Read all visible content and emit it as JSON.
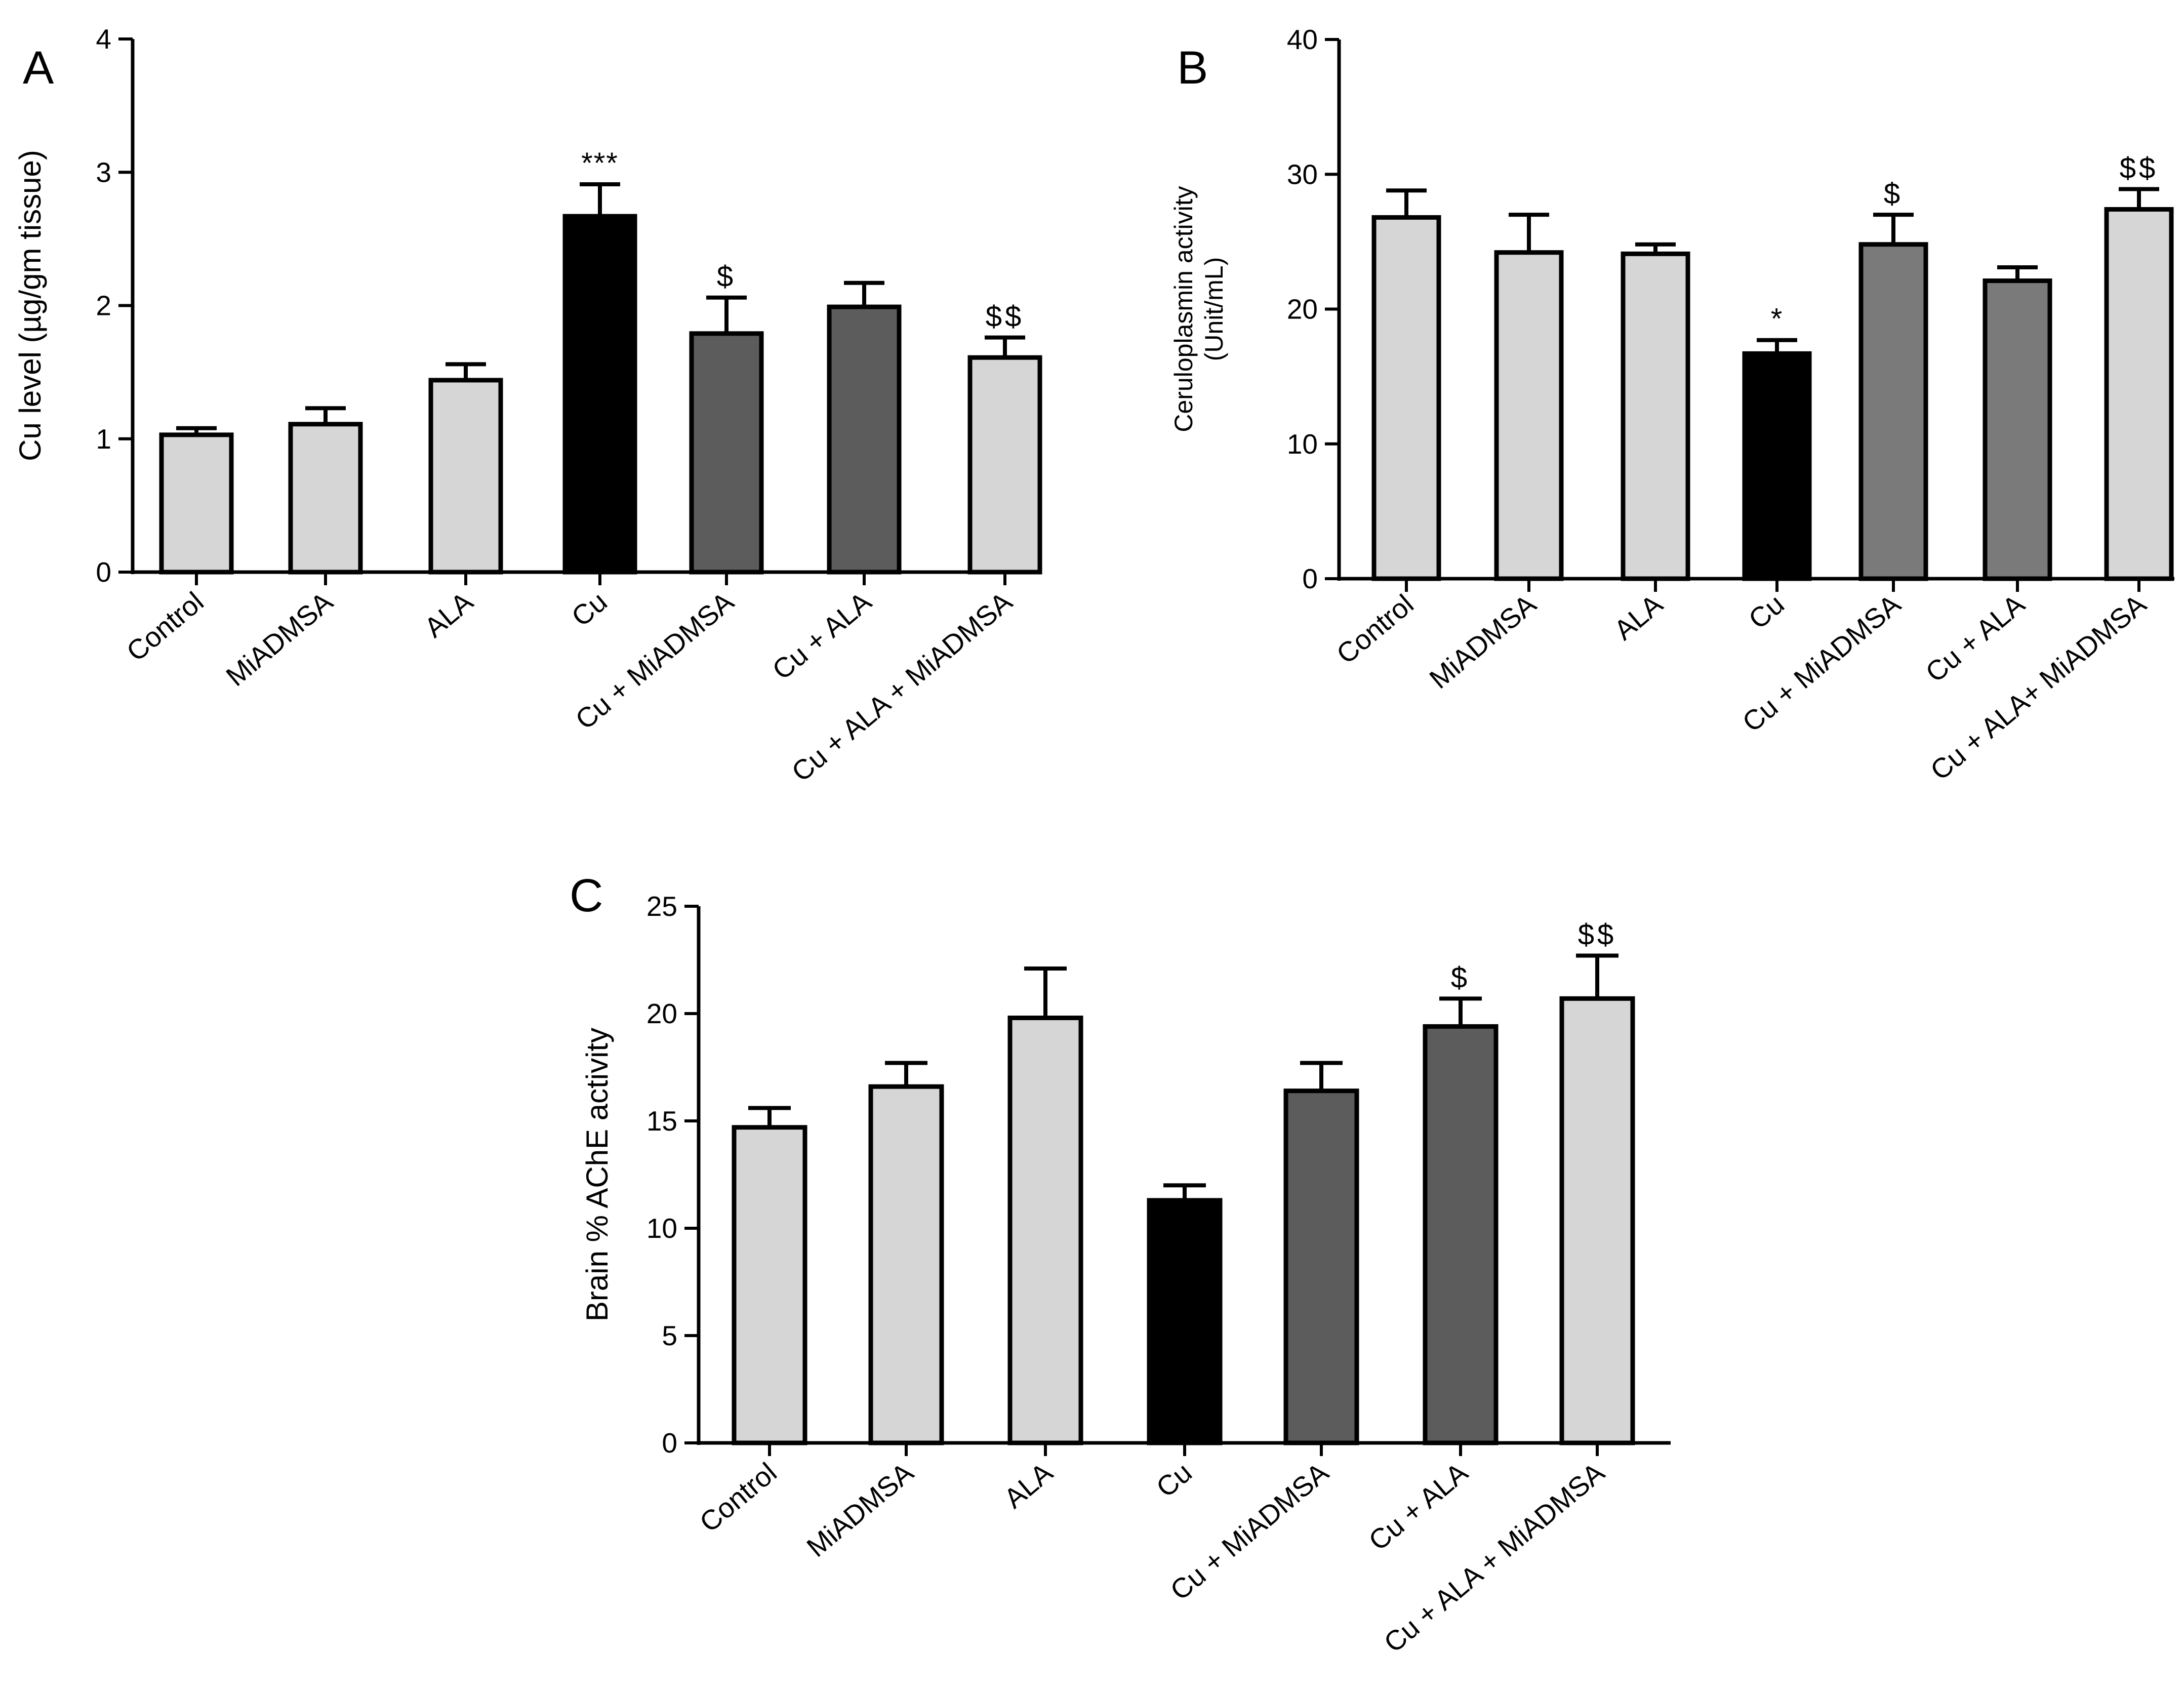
{
  "chart_data": [
    {
      "panel": "A",
      "type": "bar",
      "ylabel_lines": [
        "Cu level (µg/gm tissue)"
      ],
      "ylim": [
        0,
        4
      ],
      "yticks": [
        "0",
        "1",
        "2",
        "3",
        "4"
      ],
      "categories": [
        "Control",
        "MiADMSA",
        "ALA",
        "Cu",
        "Cu + MiADMSA",
        "Cu + ALA",
        "Cu + ALA + MiADMSA"
      ],
      "values": [
        1.03,
        1.11,
        1.44,
        2.67,
        1.79,
        1.99,
        1.61
      ],
      "errors": [
        0.05,
        0.12,
        0.12,
        0.24,
        0.27,
        0.18,
        0.15
      ],
      "significance": [
        "",
        "",
        "",
        "***",
        "$",
        "",
        "$$"
      ],
      "bar_colors": [
        "#d6d6d6",
        "#d6d6d6",
        "#d6d6d6",
        "#000000",
        "#5c5c5c",
        "#5c5c5c",
        "#d6d6d6"
      ]
    },
    {
      "panel": "B",
      "type": "bar",
      "ylabel_lines": [
        "Ceruloplasmin activity",
        "(Unit/mL)"
      ],
      "ylim": [
        0,
        40
      ],
      "yticks": [
        "0",
        "10",
        "20",
        "30",
        "40"
      ],
      "categories": [
        "Control",
        "MiADMSA",
        "ALA",
        "Cu",
        "Cu + MiADMSA",
        "Cu + ALA",
        "Cu + ALA+ MiADMSA"
      ],
      "values": [
        26.8,
        24.2,
        24.1,
        16.7,
        24.8,
        22.1,
        27.4
      ],
      "errors": [
        2.0,
        2.8,
        0.7,
        1.0,
        2.2,
        1.0,
        1.5
      ],
      "significance": [
        "",
        "",
        "",
        "*",
        "$",
        "",
        "$$"
      ],
      "bar_colors": [
        "#d6d6d6",
        "#d6d6d6",
        "#d6d6d6",
        "#000000",
        "#7a7a7a",
        "#7a7a7a",
        "#d6d6d6"
      ]
    },
    {
      "panel": "C",
      "type": "bar",
      "ylabel_lines": [
        "Brain % AChE activity"
      ],
      "ylim": [
        0,
        25
      ],
      "yticks": [
        "0",
        "5",
        "10",
        "15",
        "20",
        "25"
      ],
      "categories": [
        "Control",
        "MiADMSA",
        "ALA",
        "Cu",
        "Cu + MiADMSA",
        "Cu + ALA",
        "Cu + ALA + MiADMSA"
      ],
      "values": [
        14.7,
        16.6,
        19.8,
        11.3,
        16.4,
        19.4,
        20.7
      ],
      "errors": [
        0.9,
        1.1,
        2.3,
        0.7,
        1.3,
        1.3,
        2.0
      ],
      "significance": [
        "",
        "",
        "",
        "",
        "",
        "$",
        "$$"
      ],
      "bar_colors": [
        "#d6d6d6",
        "#d6d6d6",
        "#d6d6d6",
        "#000000",
        "#5c5c5c",
        "#5c5c5c",
        "#d6d6d6"
      ]
    }
  ]
}
